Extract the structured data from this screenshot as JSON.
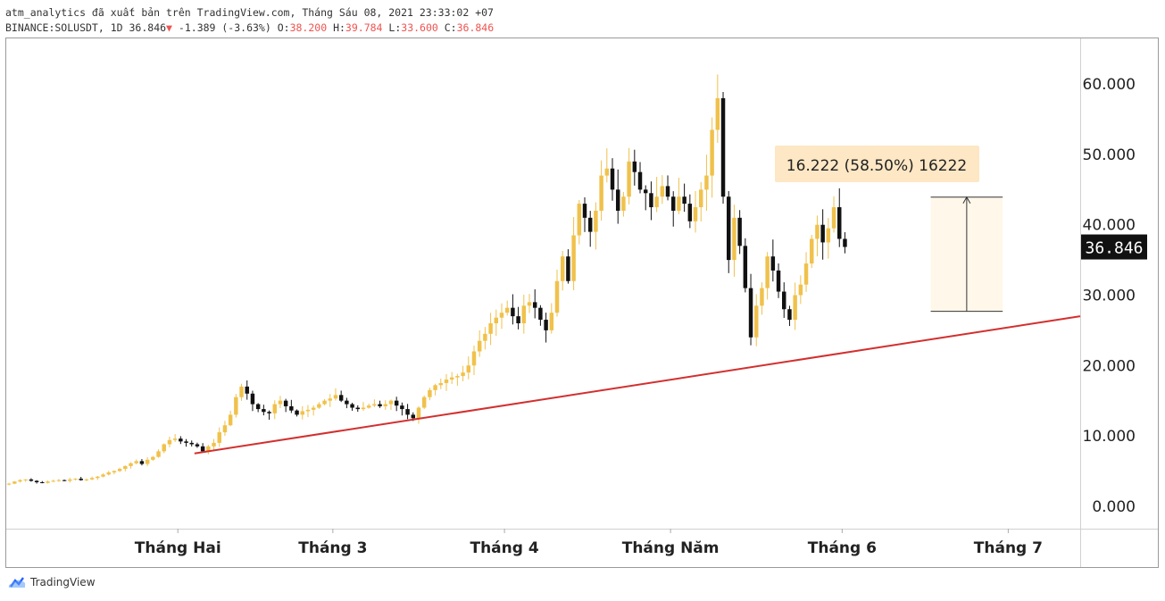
{
  "header": {
    "publish_line": "atm_analytics đã xuất bản trên TradingView.com, Tháng Sáu 08, 2021 23:33:02 +07",
    "symbol": "BINANCE:SOLUSDT, 1D",
    "last": "36.846",
    "change": "-1.389 (-3.63%)",
    "o_label": "O:",
    "o": "38.200",
    "h_label": "H:",
    "h": "39.784",
    "l_label": "L:",
    "l": "33.600",
    "c_label": "C:",
    "c": "36.846"
  },
  "colors": {
    "bull": "#f0c14b",
    "bear": "#111111",
    "trendline": "#d32f2f",
    "measure_fill": "#fff3e0",
    "measure_label_bg": "#fde7c4"
  },
  "chart_data": {
    "type": "candlestick",
    "symbol": "BINANCE:SOLUSDT",
    "interval": "1D",
    "y_ticks": [
      0,
      10,
      20,
      30,
      40,
      50,
      60
    ],
    "y_tick_labels": [
      "0.000",
      "10.000",
      "20.000",
      "30.000",
      "40.000",
      "50.000",
      "60.000"
    ],
    "ylim": [
      -3.2,
      66.5
    ],
    "x_ticks": [
      {
        "label": "Tháng Hai",
        "day": 31
      },
      {
        "label": "Tháng 3",
        "day": 59
      },
      {
        "label": "Tháng 4",
        "day": 90
      },
      {
        "label": "Tháng Năm",
        "day": 120
      },
      {
        "label": "Tháng 6",
        "day": 151
      },
      {
        "label": "Tháng 7",
        "day": 181
      }
    ],
    "xlim": [
      0,
      194
    ],
    "last_price_label": "36.846",
    "closes": [
      3.2,
      3.5,
      3.7,
      3.8,
      3.6,
      3.4,
      3.3,
      3.5,
      3.6,
      3.7,
      3.6,
      3.8,
      3.9,
      3.7,
      3.8,
      4.0,
      4.2,
      4.5,
      4.8,
      5.0,
      5.3,
      5.7,
      6.1,
      6.4,
      6.0,
      6.6,
      7.0,
      7.8,
      8.8,
      9.4,
      9.6,
      9.2,
      9.0,
      8.8,
      8.5,
      7.8,
      8.5,
      9.0,
      10.5,
      11.5,
      13.0,
      15.5,
      17.0,
      16.0,
      14.5,
      13.8,
      13.4,
      13.2,
      14.5,
      15.0,
      14.2,
      13.6,
      13.0,
      13.5,
      13.7,
      14.0,
      14.5,
      15.0,
      15.3,
      15.8,
      15.0,
      14.5,
      14.0,
      13.8,
      14.0,
      14.3,
      14.5,
      14.2,
      14.5,
      15.0,
      14.3,
      13.8,
      13.0,
      12.5,
      14.0,
      15.5,
      16.5,
      17.2,
      17.5,
      18.0,
      18.3,
      18.5,
      19.0,
      20.0,
      22.0,
      23.5,
      24.5,
      26.0,
      26.8,
      27.5,
      28.2,
      27.0,
      26.0,
      28.5,
      29.0,
      28.2,
      26.5,
      25.0,
      27.5,
      32.0,
      35.5,
      32.0,
      38.5,
      43.0,
      41.0,
      39.0,
      42.0,
      47.0,
      48.0,
      45.0,
      42.0,
      44.0,
      49.0,
      47.5,
      45.0,
      44.5,
      42.5,
      44.0,
      45.5,
      44.0,
      42.0,
      44.0,
      43.0,
      40.5,
      42.5,
      45.0,
      47.0,
      53.5,
      58.0,
      44.0,
      35.0,
      41.0,
      37.0,
      31.0,
      24.0,
      28.5,
      31.0,
      35.5,
      33.5,
      30.5,
      28.0,
      26.5,
      30.0,
      31.5,
      34.5,
      38.0,
      40.0,
      37.5,
      39.5,
      42.5,
      38.0,
      36.85
    ],
    "highs_lows_note": "",
    "measure_tool": {
      "label": "16.222 (58.50%) 16222",
      "from_price": 27.7,
      "to_price": 43.93,
      "from_day": 167,
      "to_day": 180
    },
    "trendline": {
      "start_day": 34,
      "start_price": 7.5,
      "end_day": 194,
      "end_price": 27.0
    }
  },
  "footer": {
    "brand": "TradingView",
    "logo_icon": "tradingview-cloud-icon"
  }
}
